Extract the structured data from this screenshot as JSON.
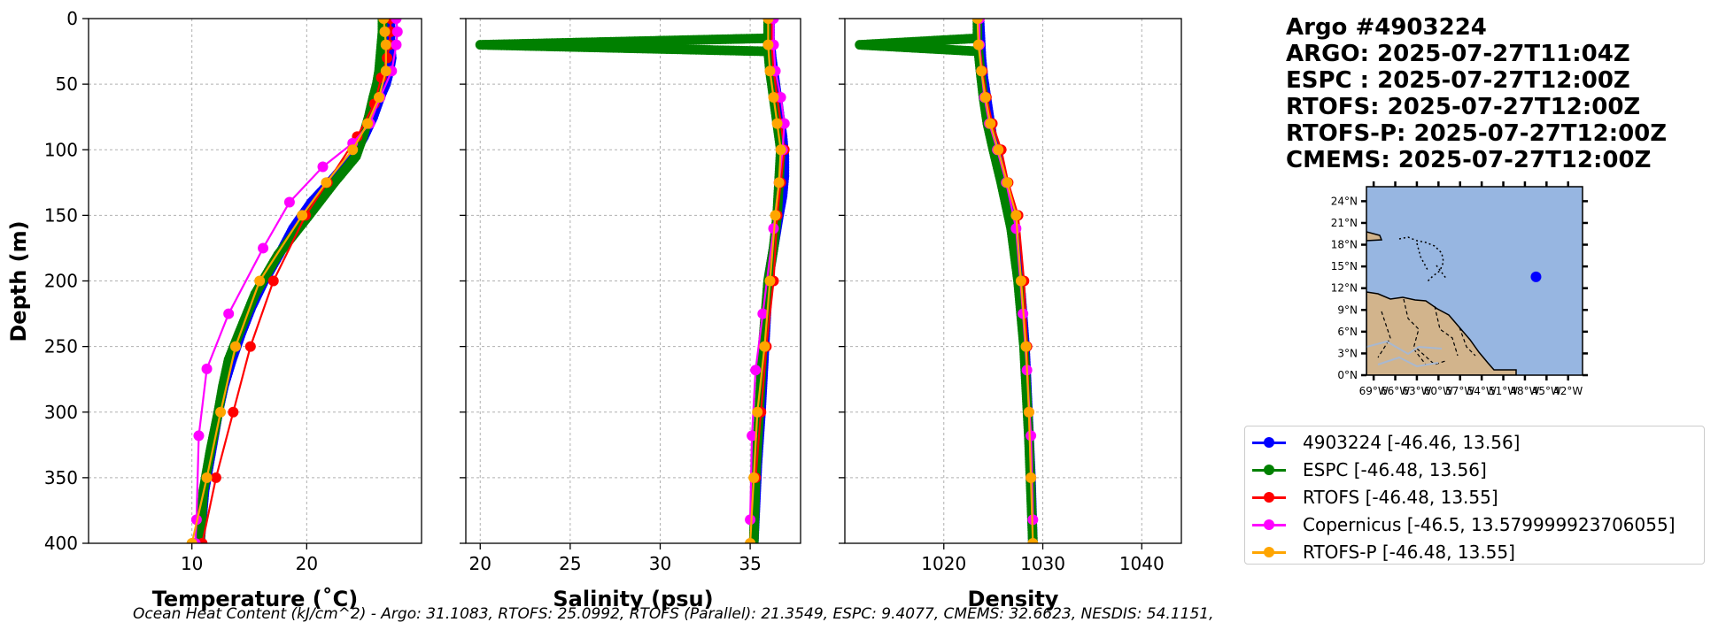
{
  "title_lines": [
    "Argo #4903224",
    "ARGO: 2025-07-27T11:04Z",
    "ESPC : 2025-07-27T12:00Z",
    "RTOFS: 2025-07-27T12:00Z",
    "RTOFS-P: 2025-07-27T12:00Z",
    "CMEMS: 2025-07-27T12:00Z"
  ],
  "footer": "Ocean Heat Content (kJ/cm^2) - Argo: 31.1083,  RTOFS: 25.0992,  RTOFS (Parallel): 21.3549,  ESPC: 9.4077,  CMEMS: 32.6623,  NESDIS: 54.1151,",
  "legend": [
    {
      "label": "4903224 [-46.46, 13.56]",
      "color": "#0000ff"
    },
    {
      "label": "ESPC [-46.48, 13.56]",
      "color": "#008000"
    },
    {
      "label": "RTOFS [-46.48, 13.55]",
      "color": "#ff0000"
    },
    {
      "label": "Copernicus [-46.5, 13.579999923706055]",
      "color": "#ff00ff"
    },
    {
      "label": "RTOFS-P [-46.48, 13.55]",
      "color": "#ffa500"
    }
  ],
  "map": {
    "lat_ticks": [
      "0°N",
      "3°N",
      "6°N",
      "9°N",
      "12°N",
      "15°N",
      "18°N",
      "21°N",
      "24°N"
    ],
    "lon_ticks": [
      "69°W",
      "66°W",
      "63°W",
      "60°W",
      "57°W",
      "54°W",
      "51°W",
      "48°W",
      "45°W",
      "42°W"
    ],
    "float_lon": -46.46,
    "float_lat": 13.56,
    "ocean_color": "#97b6e1",
    "land_color": "#d2b48c"
  },
  "chart_data": [
    {
      "type": "line",
      "xlabel": "Temperature (˚C)",
      "ylabel": "Depth (m)",
      "xlim": [
        1,
        30
      ],
      "ylim": [
        400,
        0
      ],
      "xticks": [
        10,
        20
      ],
      "yticks": [
        0,
        50,
        100,
        150,
        200,
        250,
        300,
        350,
        400
      ],
      "grid": true,
      "series": [
        {
          "name": "4903224",
          "color": "#0000ff",
          "markers": "dense",
          "x": [
            27.3,
            27.3,
            27.3,
            27.4,
            27.2,
            26.9,
            26.4,
            25.8,
            25.0,
            24.0,
            22.0,
            20.4,
            18.8,
            17.6,
            16.3,
            15.2,
            14.3,
            13.5,
            12.8,
            12.3,
            11.9,
            11.5,
            11.1,
            10.9,
            10.7
          ],
          "y": [
            0,
            10,
            20,
            30,
            40,
            50,
            60,
            75,
            90,
            105,
            125,
            140,
            160,
            180,
            200,
            220,
            240,
            260,
            280,
            300,
            320,
            340,
            360,
            380,
            400
          ]
        },
        {
          "name": "ESPC",
          "color": "#008000",
          "markers": "dense",
          "x": [
            26.6,
            26.6,
            26.5,
            26.4,
            26.3,
            26.1,
            25.8,
            25.4,
            24.9,
            24.3,
            22.4,
            20.2,
            17.5,
            15.5,
            14.1,
            13.2,
            12.7,
            12.3,
            11.6,
            11.0,
            10.7
          ],
          "y": [
            0,
            10,
            20,
            30,
            40,
            50,
            60,
            75,
            90,
            105,
            125,
            150,
            180,
            210,
            240,
            260,
            280,
            300,
            330,
            360,
            400
          ]
        },
        {
          "name": "RTOFS",
          "color": "#ff0000",
          "markers": "sparse",
          "x": [
            27.3,
            27.3,
            27.2,
            27.0,
            26.5,
            25.9,
            24.4,
            21.8,
            19.9,
            17.1,
            15.1,
            13.6,
            12.1,
            10.9
          ],
          "y": [
            0,
            10,
            20,
            30,
            45,
            65,
            90,
            125,
            150,
            200,
            250,
            300,
            350,
            400
          ]
        },
        {
          "name": "Copernicus",
          "color": "#ff00ff",
          "markers": "sparse",
          "x": [
            27.8,
            27.9,
            27.8,
            27.4,
            26.4,
            25.5,
            24.0,
            21.4,
            18.5,
            16.2,
            13.2,
            11.3,
            10.6,
            10.4,
            10.3
          ],
          "y": [
            0,
            10,
            20,
            40,
            60,
            80,
            95,
            113,
            140,
            175,
            225,
            267,
            318,
            382,
            400
          ]
        },
        {
          "name": "RTOFS-P",
          "color": "#ffa500",
          "markers": "sparse",
          "x": [
            26.7,
            26.8,
            26.9,
            26.9,
            26.3,
            25.3,
            24.0,
            21.7,
            19.6,
            15.9,
            13.8,
            12.5,
            11.3,
            10.0
          ],
          "y": [
            0,
            10,
            20,
            40,
            60,
            80,
            100,
            125,
            150,
            200,
            250,
            300,
            350,
            400
          ]
        }
      ]
    },
    {
      "type": "line",
      "xlabel": "Salinity (psu)",
      "ylabel": "",
      "xlim": [
        19.2,
        37.8
      ],
      "ylim": [
        400,
        0
      ],
      "xticks": [
        20,
        25,
        30,
        35
      ],
      "yticks": [
        0,
        50,
        100,
        150,
        200,
        250,
        300,
        350,
        400
      ],
      "grid": true,
      "series": [
        {
          "name": "4903224",
          "color": "#0000ff",
          "markers": "dense",
          "x": [
            36.1,
            36.1,
            36.2,
            36.4,
            36.6,
            36.8,
            36.9,
            36.9,
            36.8,
            36.6,
            36.3,
            36.0,
            35.8,
            35.6,
            35.4,
            35.3,
            35.2
          ],
          "y": [
            0,
            15,
            30,
            50,
            70,
            90,
            105,
            120,
            135,
            150,
            175,
            200,
            250,
            300,
            340,
            370,
            400
          ]
        },
        {
          "name": "ESPC",
          "color": "#008000",
          "markers": "dense",
          "x": [
            36.0,
            36.0,
            36.0,
            20.0,
            36.0,
            36.1,
            36.3,
            36.5,
            36.7,
            36.6,
            36.5,
            36.3,
            36.0,
            35.7,
            35.5,
            35.3,
            35.2
          ],
          "y": [
            0,
            5,
            15,
            20,
            25,
            40,
            60,
            80,
            100,
            125,
            150,
            175,
            200,
            250,
            300,
            350,
            400
          ]
        },
        {
          "name": "RTOFS",
          "color": "#ff0000",
          "markers": "sparse",
          "x": [
            36.2,
            36.2,
            36.3,
            36.5,
            36.7,
            36.9,
            36.7,
            36.5,
            36.3,
            35.9,
            35.6,
            35.3
          ],
          "y": [
            0,
            20,
            40,
            60,
            80,
            100,
            125,
            150,
            200,
            250,
            300,
            350
          ]
        },
        {
          "name": "Copernicus",
          "color": "#ff00ff",
          "markers": "sparse",
          "x": [
            36.3,
            36.3,
            36.4,
            36.7,
            36.9,
            36.8,
            36.6,
            36.3,
            35.7,
            35.3,
            35.1,
            35.0
          ],
          "y": [
            0,
            20,
            40,
            60,
            80,
            100,
            125,
            160,
            225,
            268,
            318,
            382
          ]
        },
        {
          "name": "RTOFS-P",
          "color": "#ffa500",
          "markers": "sparse",
          "x": [
            36.0,
            36.0,
            36.1,
            36.3,
            36.5,
            36.7,
            36.6,
            36.4,
            36.1,
            35.8,
            35.4,
            35.2,
            35.0
          ],
          "y": [
            0,
            20,
            40,
            60,
            80,
            100,
            125,
            150,
            200,
            250,
            300,
            350,
            400
          ]
        }
      ]
    },
    {
      "type": "line",
      "xlabel": "Density",
      "ylabel": "",
      "xlim": [
        1010,
        1044
      ],
      "ylim": [
        400,
        0
      ],
      "xticks": [
        1020,
        1030,
        1040
      ],
      "yticks": [
        0,
        50,
        100,
        150,
        200,
        250,
        300,
        350,
        400
      ],
      "grid": true,
      "series": [
        {
          "name": "4903224",
          "color": "#0000ff",
          "markers": "dense",
          "x": [
            1023.6,
            1023.7,
            1023.8,
            1024.0,
            1024.3,
            1024.6,
            1024.9,
            1025.5,
            1026.2,
            1026.9,
            1027.4,
            1027.8,
            1028.2,
            1028.5,
            1028.8,
            1029.0
          ],
          "y": [
            0,
            15,
            30,
            45,
            60,
            75,
            90,
            110,
            130,
            155,
            180,
            210,
            250,
            300,
            350,
            400
          ]
        },
        {
          "name": "ESPC",
          "color": "#008000",
          "markers": "dense",
          "x": [
            1023.4,
            1023.4,
            1011.5,
            1023.5,
            1023.7,
            1024.0,
            1024.4,
            1025.0,
            1025.8,
            1026.8,
            1027.5,
            1028.1,
            1028.6,
            1029.0
          ],
          "y": [
            0,
            15,
            20,
            25,
            40,
            60,
            80,
            100,
            125,
            160,
            200,
            250,
            320,
            400
          ]
        },
        {
          "name": "RTOFS",
          "color": "#ff0000",
          "markers": "sparse",
          "x": [
            1023.5,
            1023.6,
            1023.9,
            1024.3,
            1024.9,
            1025.8,
            1026.5,
            1027.5,
            1028.1,
            1028.4,
            1028.6,
            1028.8
          ],
          "y": [
            0,
            20,
            40,
            60,
            80,
            100,
            125,
            150,
            200,
            250,
            300,
            350
          ]
        },
        {
          "name": "Copernicus",
          "color": "#ff00ff",
          "markers": "sparse",
          "x": [
            1023.6,
            1023.6,
            1023.8,
            1024.1,
            1024.6,
            1025.4,
            1026.3,
            1027.3,
            1028.0,
            1028.4,
            1028.8,
            1029.0
          ],
          "y": [
            0,
            20,
            40,
            60,
            80,
            100,
            125,
            160,
            225,
            268,
            318,
            382
          ]
        },
        {
          "name": "RTOFS-P",
          "color": "#ffa500",
          "markers": "sparse",
          "x": [
            1023.4,
            1023.5,
            1023.8,
            1024.2,
            1024.7,
            1025.5,
            1026.4,
            1027.3,
            1027.8,
            1028.3,
            1028.6,
            1028.8,
            1029.0
          ],
          "y": [
            0,
            20,
            40,
            60,
            80,
            100,
            125,
            150,
            200,
            250,
            300,
            350,
            400
          ]
        }
      ]
    }
  ]
}
